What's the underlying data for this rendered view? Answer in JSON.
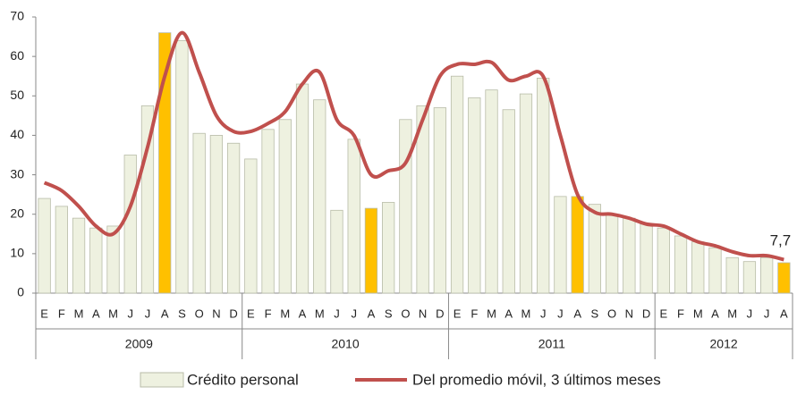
{
  "chart_data": {
    "type": "bar-line",
    "categories": [
      "E",
      "F",
      "M",
      "A",
      "M",
      "J",
      "J",
      "A",
      "S",
      "O",
      "N",
      "D",
      "E",
      "F",
      "M",
      "A",
      "M",
      "J",
      "J",
      "A",
      "S",
      "O",
      "N",
      "D",
      "E",
      "F",
      "M",
      "A",
      "M",
      "J",
      "J",
      "A",
      "S",
      "O",
      "N",
      "D",
      "E",
      "F",
      "M",
      "A",
      "M",
      "J",
      "J",
      "A"
    ],
    "year_groups": [
      {
        "label": "2009",
        "months": 12
      },
      {
        "label": "2010",
        "months": 12
      },
      {
        "label": "2011",
        "months": 12
      },
      {
        "label": "2012",
        "months": 8
      }
    ],
    "ylim": [
      0,
      70
    ],
    "yticks": [
      0,
      10,
      20,
      30,
      40,
      50,
      60,
      70
    ],
    "grid": false,
    "series": [
      {
        "name": "Crédito personal",
        "type": "bar",
        "color": "#eef1e0",
        "colors": [
          "#eef1e0",
          "#eef1e0",
          "#eef1e0",
          "#eef1e0",
          "#eef1e0",
          "#eef1e0",
          "#eef1e0",
          "#ffc000",
          "#eef1e0",
          "#eef1e0",
          "#eef1e0",
          "#eef1e0",
          "#eef1e0",
          "#eef1e0",
          "#eef1e0",
          "#eef1e0",
          "#eef1e0",
          "#eef1e0",
          "#eef1e0",
          "#ffc000",
          "#eef1e0",
          "#eef1e0",
          "#eef1e0",
          "#eef1e0",
          "#eef1e0",
          "#eef1e0",
          "#eef1e0",
          "#eef1e0",
          "#eef1e0",
          "#eef1e0",
          "#eef1e0",
          "#ffc000",
          "#eef1e0",
          "#eef1e0",
          "#eef1e0",
          "#eef1e0",
          "#eef1e0",
          "#eef1e0",
          "#eef1e0",
          "#eef1e0",
          "#eef1e0",
          "#eef1e0",
          "#eef1e0",
          "#ffc000"
        ],
        "values": [
          24,
          22,
          19,
          16.5,
          17,
          35,
          47.5,
          66,
          64,
          40.5,
          40,
          38,
          34,
          41.5,
          44,
          53,
          49,
          21,
          39,
          21.5,
          23,
          44,
          47.5,
          47,
          55,
          49.5,
          51.5,
          46.5,
          50.5,
          54.5,
          24.5,
          24.5,
          22.5,
          20,
          19,
          17.5,
          16.5,
          14.5,
          13,
          11.5,
          9,
          8,
          9,
          7.7
        ],
        "value_labels": [
          null,
          null,
          null,
          null,
          null,
          null,
          null,
          null,
          null,
          null,
          null,
          null,
          null,
          null,
          null,
          null,
          null,
          null,
          null,
          null,
          null,
          null,
          null,
          null,
          null,
          null,
          null,
          null,
          null,
          null,
          null,
          null,
          null,
          null,
          null,
          null,
          null,
          null,
          null,
          null,
          null,
          null,
          null,
          "7,7"
        ]
      },
      {
        "name": "Del promedio móvil, 3 últimos meses",
        "type": "line",
        "color": "#c0504d",
        "values": [
          28,
          26,
          22,
          17,
          15,
          22,
          37,
          55,
          66,
          56,
          45,
          41,
          41,
          43,
          46,
          53,
          56,
          44,
          40,
          30,
          31,
          33,
          44,
          55,
          58,
          58,
          58.5,
          54,
          55,
          55,
          40,
          25,
          20.5,
          20,
          19,
          17.5,
          17,
          15,
          13,
          12,
          10.5,
          9.5,
          9.5,
          8.5
        ]
      }
    ]
  }
}
